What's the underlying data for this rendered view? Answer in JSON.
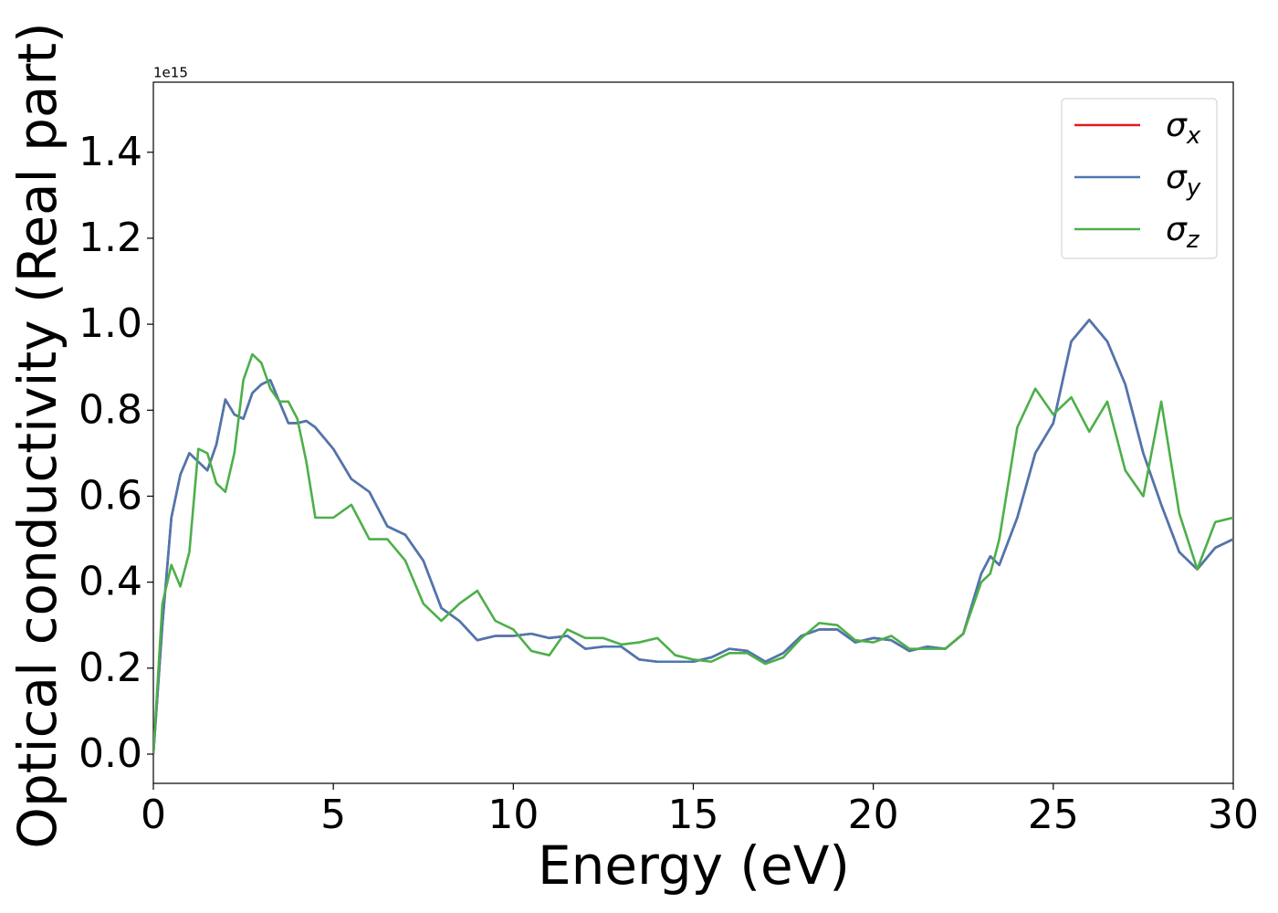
{
  "chart_data": {
    "type": "line",
    "xlabel": "Energy (eV)",
    "ylabel": "Optical conductivity (Real part)",
    "y_offset_label": "1e15",
    "x": [
      0,
      0.25,
      0.5,
      0.75,
      1.0,
      1.25,
      1.5,
      1.75,
      2.0,
      2.25,
      2.5,
      2.75,
      3.0,
      3.25,
      3.5,
      3.75,
      4.0,
      4.25,
      4.5,
      5.0,
      5.5,
      6.0,
      6.5,
      7.0,
      7.5,
      8.0,
      8.5,
      9.0,
      9.5,
      10.0,
      10.5,
      11.0,
      11.5,
      12.0,
      12.5,
      13.0,
      13.5,
      14.0,
      14.5,
      15.0,
      15.5,
      16.0,
      16.5,
      17.0,
      17.5,
      18.0,
      18.5,
      19.0,
      19.5,
      20.0,
      20.5,
      21.0,
      21.5,
      22.0,
      22.5,
      23.0,
      23.25,
      23.5,
      24.0,
      24.5,
      25.0,
      25.5,
      26.0,
      26.5,
      27.0,
      27.5,
      28.0,
      28.5,
      29.0,
      29.5,
      30.0
    ],
    "series": [
      {
        "name": "σx",
        "color": "#e41a1c",
        "values": [
          0,
          0.3,
          0.55,
          0.65,
          0.7,
          0.68,
          0.66,
          0.72,
          0.825,
          0.79,
          0.78,
          0.84,
          0.86,
          0.87,
          0.82,
          0.77,
          0.77,
          0.775,
          0.76,
          0.71,
          0.64,
          0.61,
          0.53,
          0.51,
          0.45,
          0.34,
          0.31,
          0.265,
          0.275,
          0.275,
          0.28,
          0.27,
          0.275,
          0.245,
          0.25,
          0.25,
          0.22,
          0.215,
          0.215,
          0.215,
          0.225,
          0.245,
          0.24,
          0.215,
          0.235,
          0.275,
          0.29,
          0.29,
          0.26,
          0.27,
          0.265,
          0.24,
          0.25,
          0.245,
          0.28,
          0.42,
          0.46,
          0.44,
          0.55,
          0.7,
          0.77,
          0.96,
          1.01,
          0.96,
          0.86,
          0.7,
          0.58,
          0.47,
          0.43,
          0.48,
          0.5
        ]
      },
      {
        "name": "σy",
        "color": "#4a78b0",
        "values": [
          0,
          0.3,
          0.55,
          0.65,
          0.7,
          0.68,
          0.66,
          0.72,
          0.825,
          0.79,
          0.78,
          0.84,
          0.86,
          0.87,
          0.82,
          0.77,
          0.77,
          0.775,
          0.76,
          0.71,
          0.64,
          0.61,
          0.53,
          0.51,
          0.45,
          0.34,
          0.31,
          0.265,
          0.275,
          0.275,
          0.28,
          0.27,
          0.275,
          0.245,
          0.25,
          0.25,
          0.22,
          0.215,
          0.215,
          0.215,
          0.225,
          0.245,
          0.24,
          0.215,
          0.235,
          0.275,
          0.29,
          0.29,
          0.26,
          0.27,
          0.265,
          0.24,
          0.25,
          0.245,
          0.28,
          0.42,
          0.46,
          0.44,
          0.55,
          0.7,
          0.77,
          0.96,
          1.01,
          0.96,
          0.86,
          0.7,
          0.58,
          0.47,
          0.43,
          0.48,
          0.5
        ]
      },
      {
        "name": "σz",
        "color": "#4daf4a",
        "values": [
          0,
          0.35,
          0.44,
          0.39,
          0.47,
          0.71,
          0.7,
          0.63,
          0.61,
          0.7,
          0.87,
          0.93,
          0.91,
          0.85,
          0.82,
          0.82,
          0.78,
          0.68,
          0.55,
          0.55,
          0.58,
          0.5,
          0.5,
          0.45,
          0.35,
          0.31,
          0.35,
          0.38,
          0.31,
          0.29,
          0.24,
          0.23,
          0.29,
          0.27,
          0.27,
          0.255,
          0.26,
          0.27,
          0.23,
          0.22,
          0.215,
          0.235,
          0.235,
          0.21,
          0.225,
          0.27,
          0.305,
          0.3,
          0.265,
          0.26,
          0.275,
          0.245,
          0.245,
          0.245,
          0.28,
          0.4,
          0.42,
          0.5,
          0.76,
          0.85,
          0.79,
          0.83,
          0.75,
          0.82,
          0.66,
          0.6,
          0.82,
          0.56,
          0.43,
          0.54,
          0.55
        ]
      }
    ],
    "xlim": [
      0,
      30
    ],
    "xticks": [
      0,
      5,
      10,
      15,
      20,
      25,
      30
    ],
    "ylim": [
      -0.068,
      1.563
    ],
    "yticks": [
      {
        "value": 0,
        "label": "0.0"
      },
      0.2,
      0.4,
      0.6,
      0.8,
      {
        "value": 1,
        "label": "1.0"
      },
      1.2,
      1.4
    ],
    "legend": "upper right",
    "grid": false
  }
}
